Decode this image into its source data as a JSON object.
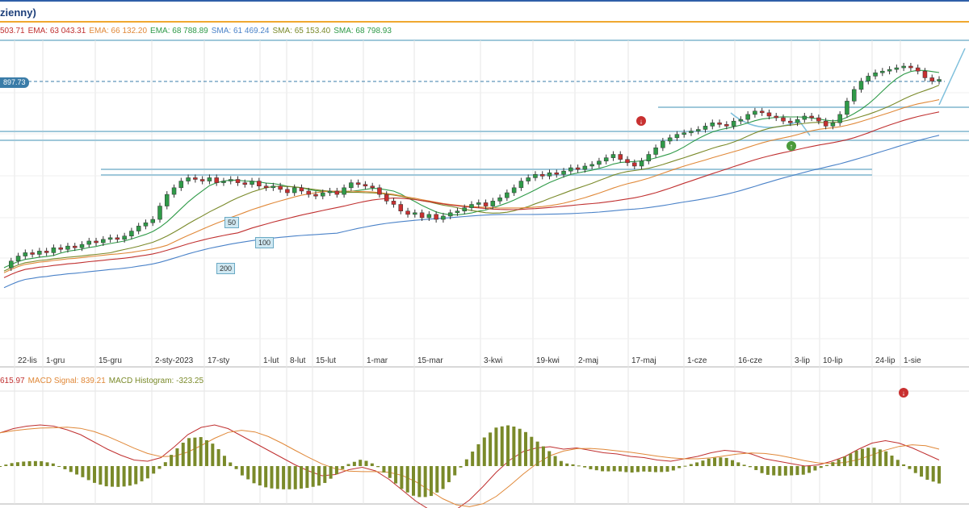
{
  "title": "zienny)",
  "indicators": [
    {
      "text": "503.71",
      "color": "#c03030"
    },
    {
      "text": "EMA: 63 043.31",
      "color": "#c03030"
    },
    {
      "text": "EMA: 66 132.20",
      "color": "#e08838"
    },
    {
      "text": "EMA: 68 788.89",
      "color": "#2f9a48"
    },
    {
      "text": "SMA: 61 469.24",
      "color": "#4a82c8"
    },
    {
      "text": "SMA: 65 153.40",
      "color": "#7a8a2a"
    },
    {
      "text": "SMA: 68 798.93",
      "color": "#2f9a48"
    }
  ],
  "price_tag": "897.73",
  "ma_labels": {
    "ma50": "50",
    "ma100": "100",
    "ma200": "200"
  },
  "macd_legend": [
    {
      "text": "615.97",
      "color": "#c03030"
    },
    {
      "text": "MACD Signal: 839.21",
      "color": "#e08838"
    },
    {
      "text": "MACD Histogram: -323.25",
      "color": "#7a8a2a"
    }
  ],
  "chart_data": {
    "type": "line",
    "x_tick_labels": [
      "22-lis",
      "1-gru",
      "15-gru",
      "2-sty-2023",
      "17-sty",
      "1-lut",
      "8-lut",
      "15-lut",
      "1-mar",
      "15-mar",
      "3-kwi",
      "19-kwi",
      "2-maj",
      "17-maj",
      "1-cze",
      "16-cze",
      "3-lip",
      "10-lip",
      "24-lip",
      "1-sie"
    ],
    "close_shape": [
      0.18,
      0.22,
      0.25,
      0.27,
      0.26,
      0.28,
      0.27,
      0.3,
      0.29,
      0.31,
      0.3,
      0.32,
      0.34,
      0.33,
      0.35,
      0.36,
      0.35,
      0.37,
      0.4,
      0.43,
      0.45,
      0.47,
      0.55,
      0.62,
      0.66,
      0.7,
      0.72,
      0.71,
      0.7,
      0.72,
      0.69,
      0.7,
      0.71,
      0.69,
      0.68,
      0.7,
      0.67,
      0.66,
      0.67,
      0.65,
      0.63,
      0.66,
      0.64,
      0.62,
      0.61,
      0.63,
      0.64,
      0.62,
      0.66,
      0.69,
      0.68,
      0.67,
      0.66,
      0.62,
      0.58,
      0.56,
      0.52,
      0.5,
      0.51,
      0.48,
      0.5,
      0.47,
      0.49,
      0.51,
      0.52,
      0.54,
      0.56,
      0.57,
      0.55,
      0.58,
      0.6,
      0.63,
      0.66,
      0.7,
      0.72,
      0.74,
      0.73,
      0.75,
      0.74,
      0.76,
      0.78,
      0.77,
      0.79,
      0.8,
      0.82,
      0.84,
      0.86,
      0.83,
      0.81,
      0.79,
      0.82,
      0.86,
      0.9,
      0.94,
      0.96,
      0.98,
      0.99,
      1.0,
      1.01,
      1.03,
      1.05,
      1.04,
      1.03,
      1.06,
      1.07,
      1.1,
      1.12,
      1.11,
      1.09,
      1.08,
      1.06,
      1.05,
      1.07,
      1.09,
      1.08,
      1.06,
      1.03,
      1.05,
      1.1,
      1.18,
      1.25,
      1.3,
      1.33,
      1.35,
      1.36,
      1.37,
      1.38,
      1.39,
      1.38,
      1.36,
      1.32,
      1.3,
      1.31
    ],
    "macd_shape": [
      0.55,
      0.62,
      0.66,
      0.68,
      0.66,
      0.6,
      0.52,
      0.4,
      0.28,
      0.18,
      0.1,
      0.08,
      0.14,
      0.32,
      0.52,
      0.64,
      0.68,
      0.62,
      0.5,
      0.38,
      0.26,
      0.14,
      0.02,
      -0.08,
      -0.16,
      -0.14,
      -0.06,
      -0.02,
      -0.08,
      -0.22,
      -0.4,
      -0.58,
      -0.72,
      -0.78,
      -0.72,
      -0.56,
      -0.34,
      -0.1,
      0.1,
      0.24,
      0.3,
      0.32,
      0.28,
      0.3,
      0.26,
      0.22,
      0.2,
      0.16,
      0.14,
      0.1,
      0.08,
      0.12,
      0.16,
      0.22,
      0.26,
      0.24,
      0.2,
      0.12,
      0.08,
      0.04,
      0.0,
      0.02,
      0.08,
      0.16,
      0.28,
      0.38,
      0.42,
      0.38,
      0.3,
      0.2,
      0.1
    ],
    "ylim_price": [
      0,
      1.45
    ],
    "grid": true
  }
}
